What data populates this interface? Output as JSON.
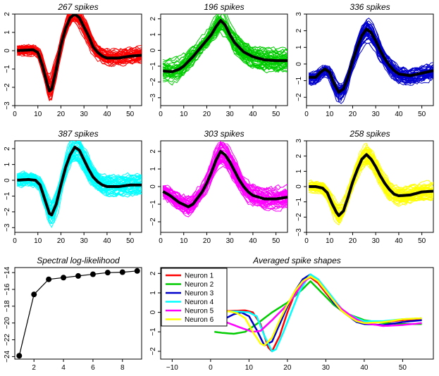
{
  "chart_data": [
    {
      "type": "line",
      "title": "267 spikes",
      "color": "#ff0000",
      "xlim": [
        0,
        55
      ],
      "ylim": [
        -3,
        2
      ],
      "x_ticks": [
        0,
        10,
        20,
        30,
        40,
        50
      ],
      "y_ticks": [
        -3,
        -2,
        -1,
        0,
        1,
        2
      ],
      "mean_shape": [
        [
          0,
          0
        ],
        [
          5,
          0.03
        ],
        [
          8,
          0.05
        ],
        [
          10,
          -0.1
        ],
        [
          12,
          -0.8
        ],
        [
          14,
          -1.8
        ],
        [
          15,
          -2.2
        ],
        [
          16,
          -2.1
        ],
        [
          18,
          -1.0
        ],
        [
          20,
          0.3
        ],
        [
          22,
          1.2
        ],
        [
          24,
          1.8
        ],
        [
          26,
          2.0
        ],
        [
          28,
          1.8
        ],
        [
          30,
          1.3
        ],
        [
          32,
          0.8
        ],
        [
          34,
          0.2
        ],
        [
          36,
          -0.1
        ],
        [
          38,
          -0.3
        ],
        [
          40,
          -0.4
        ],
        [
          45,
          -0.4
        ],
        [
          50,
          -0.3
        ],
        [
          55,
          -0.25
        ]
      ],
      "spread": 0.5,
      "n_traces": 45
    },
    {
      "type": "line",
      "title": "196 spikes",
      "color": "#00cc00",
      "xlim": [
        0,
        55
      ],
      "ylim": [
        -3.5,
        2.3
      ],
      "x_ticks": [
        0,
        10,
        20,
        30,
        40,
        50
      ],
      "y_ticks": [
        -3,
        -2,
        -1,
        0,
        1,
        2
      ],
      "mean_shape": [
        [
          0,
          -1.3
        ],
        [
          5,
          -1.35
        ],
        [
          8,
          -1.2
        ],
        [
          10,
          -1.0
        ],
        [
          14,
          -0.4
        ],
        [
          18,
          0.3
        ],
        [
          22,
          1.0
        ],
        [
          24,
          1.5
        ],
        [
          26,
          1.9
        ],
        [
          28,
          1.6
        ],
        [
          30,
          1.0
        ],
        [
          32,
          0.5
        ],
        [
          34,
          0.2
        ],
        [
          36,
          -0.1
        ],
        [
          40,
          -0.4
        ],
        [
          45,
          -0.6
        ],
        [
          50,
          -0.65
        ],
        [
          55,
          -0.65
        ]
      ],
      "spread": 0.8,
      "n_traces": 45
    },
    {
      "type": "line",
      "title": "336 spikes",
      "color": "#0000cc",
      "xlim": [
        0,
        55
      ],
      "ylim": [
        -2.5,
        3
      ],
      "x_ticks": [
        0,
        10,
        20,
        30,
        40,
        50
      ],
      "y_ticks": [
        -2,
        -1,
        0,
        1,
        2,
        3
      ],
      "mean_shape": [
        [
          0,
          -0.8
        ],
        [
          4,
          -0.8
        ],
        [
          6,
          -0.5
        ],
        [
          8,
          -0.3
        ],
        [
          10,
          -0.5
        ],
        [
          12,
          -1.2
        ],
        [
          14,
          -1.7
        ],
        [
          16,
          -1.5
        ],
        [
          18,
          -0.8
        ],
        [
          20,
          0.2
        ],
        [
          22,
          1.0
        ],
        [
          24,
          1.7
        ],
        [
          26,
          2.1
        ],
        [
          28,
          1.9
        ],
        [
          30,
          1.4
        ],
        [
          32,
          0.8
        ],
        [
          34,
          0.3
        ],
        [
          36,
          -0.1
        ],
        [
          38,
          -0.4
        ],
        [
          40,
          -0.6
        ],
        [
          45,
          -0.7
        ],
        [
          50,
          -0.55
        ],
        [
          55,
          -0.4
        ]
      ],
      "spread": 0.6,
      "n_traces": 45
    },
    {
      "type": "line",
      "title": "387 spikes",
      "color": "#00ffff",
      "xlim": [
        0,
        55
      ],
      "ylim": [
        -3.3,
        2.5
      ],
      "x_ticks": [
        0,
        10,
        20,
        30,
        40,
        50
      ],
      "y_ticks": [
        -3,
        -2,
        -1,
        0,
        1,
        2
      ],
      "mean_shape": [
        [
          0,
          0
        ],
        [
          6,
          0.05
        ],
        [
          9,
          0.0
        ],
        [
          11,
          -0.3
        ],
        [
          13,
          -1.2
        ],
        [
          15,
          -2.1
        ],
        [
          16,
          -2.2
        ],
        [
          18,
          -1.5
        ],
        [
          20,
          -0.3
        ],
        [
          22,
          0.8
        ],
        [
          24,
          1.6
        ],
        [
          26,
          2.1
        ],
        [
          28,
          1.9
        ],
        [
          30,
          1.3
        ],
        [
          32,
          0.7
        ],
        [
          34,
          0.2
        ],
        [
          36,
          -0.1
        ],
        [
          38,
          -0.3
        ],
        [
          40,
          -0.4
        ],
        [
          45,
          -0.4
        ],
        [
          50,
          -0.3
        ],
        [
          55,
          -0.3
        ]
      ],
      "spread": 0.75,
      "n_traces": 45
    },
    {
      "type": "line",
      "title": "303 spikes",
      "color": "#ff00ff",
      "xlim": [
        0,
        55
      ],
      "ylim": [
        -2.6,
        2.6
      ],
      "x_ticks": [
        0,
        10,
        20,
        30,
        40,
        50
      ],
      "y_ticks": [
        -2,
        -1,
        0,
        1,
        2
      ],
      "mean_shape": [
        [
          0,
          -0.2
        ],
        [
          4,
          -0.5
        ],
        [
          8,
          -0.9
        ],
        [
          12,
          -1.15
        ],
        [
          14,
          -1.0
        ],
        [
          18,
          -0.3
        ],
        [
          20,
          0.2
        ],
        [
          22,
          0.8
        ],
        [
          24,
          1.5
        ],
        [
          26,
          2.0
        ],
        [
          28,
          1.8
        ],
        [
          30,
          1.4
        ],
        [
          32,
          0.9
        ],
        [
          34,
          0.4
        ],
        [
          36,
          0.0
        ],
        [
          38,
          -0.3
        ],
        [
          40,
          -0.5
        ],
        [
          45,
          -0.7
        ],
        [
          50,
          -0.7
        ],
        [
          55,
          -0.6
        ]
      ],
      "spread": 0.7,
      "n_traces": 45
    },
    {
      "type": "line",
      "title": "258 spikes",
      "color": "#ffff00",
      "xlim": [
        0,
        55
      ],
      "ylim": [
        -3,
        3
      ],
      "x_ticks": [
        0,
        10,
        20,
        30,
        40,
        50
      ],
      "y_ticks": [
        -3,
        -2,
        -1,
        0,
        1,
        2,
        3
      ],
      "mean_shape": [
        [
          0,
          0
        ],
        [
          4,
          0
        ],
        [
          7,
          -0.1
        ],
        [
          9,
          -0.4
        ],
        [
          11,
          -1.1
        ],
        [
          13,
          -1.7
        ],
        [
          14,
          -1.9
        ],
        [
          16,
          -1.6
        ],
        [
          18,
          -0.7
        ],
        [
          20,
          0.3
        ],
        [
          22,
          1.1
        ],
        [
          24,
          1.8
        ],
        [
          26,
          2.1
        ],
        [
          28,
          1.8
        ],
        [
          30,
          1.3
        ],
        [
          32,
          0.7
        ],
        [
          34,
          0.2
        ],
        [
          36,
          -0.2
        ],
        [
          38,
          -0.5
        ],
        [
          40,
          -0.6
        ],
        [
          45,
          -0.55
        ],
        [
          50,
          -0.35
        ],
        [
          55,
          -0.3
        ]
      ],
      "spread": 0.7,
      "n_traces": 45
    },
    {
      "type": "line",
      "title": "Spectral log-likelihood",
      "x": [
        1,
        2,
        3,
        4,
        5,
        6,
        7,
        8,
        9
      ],
      "y": [
        -23.9,
        -16.6,
        -14.8,
        -14.6,
        -14.4,
        -14.2,
        -14.0,
        -13.95,
        -13.8
      ],
      "xlim": [
        0.7,
        9.3
      ],
      "ylim": [
        -24.3,
        -13.4
      ],
      "x_ticks": [
        2,
        4,
        6,
        8
      ],
      "y_ticks": [
        -24,
        -22,
        -20,
        -18,
        -16,
        -14
      ],
      "marker": "filled-circle"
    },
    {
      "type": "line",
      "title": "Averaged spike shapes",
      "xlim": [
        -13,
        58
      ],
      "ylim": [
        -2.4,
        2.3
      ],
      "x_ticks": [
        -10,
        0,
        10,
        20,
        30,
        40,
        50
      ],
      "y_ticks": [
        -2,
        -1,
        0,
        1,
        2
      ],
      "legend_position": "top-left",
      "series": [
        {
          "name": "Neuron 1",
          "color": "#ff0000",
          "points": [
            [
              1,
              0.05
            ],
            [
              6,
              0.08
            ],
            [
              9,
              0.1
            ],
            [
              11,
              0.0
            ],
            [
              13,
              -0.6
            ],
            [
              15,
              -1.8
            ],
            [
              16,
              -2.0
            ],
            [
              18,
              -1.2
            ],
            [
              20,
              0.0
            ],
            [
              22,
              1.0
            ],
            [
              24,
              1.6
            ],
            [
              26,
              1.8
            ],
            [
              28,
              1.5
            ],
            [
              30,
              1.0
            ],
            [
              32,
              0.5
            ],
            [
              34,
              0.1
            ],
            [
              36,
              -0.2
            ],
            [
              38,
              -0.4
            ],
            [
              40,
              -0.5
            ],
            [
              45,
              -0.5
            ],
            [
              50,
              -0.4
            ],
            [
              55,
              -0.35
            ]
          ]
        },
        {
          "name": "Neuron 2",
          "color": "#00cc00",
          "points": [
            [
              1,
              -1.0
            ],
            [
              3,
              -1.05
            ],
            [
              6,
              -1.1
            ],
            [
              9,
              -1.0
            ],
            [
              12,
              -0.6
            ],
            [
              16,
              0.0
            ],
            [
              20,
              0.5
            ],
            [
              24,
              1.2
            ],
            [
              26,
              1.6
            ],
            [
              28,
              1.2
            ],
            [
              30,
              0.8
            ],
            [
              32,
              0.4
            ],
            [
              34,
              0.1
            ],
            [
              36,
              -0.1
            ],
            [
              40,
              -0.4
            ],
            [
              45,
              -0.55
            ],
            [
              50,
              -0.6
            ],
            [
              55,
              -0.6
            ]
          ]
        },
        {
          "name": "Neuron 3",
          "color": "#0000cc",
          "points": [
            [
              1,
              -0.3
            ],
            [
              4,
              -0.3
            ],
            [
              6,
              -0.1
            ],
            [
              8,
              0.0
            ],
            [
              10,
              -0.2
            ],
            [
              12,
              -0.9
            ],
            [
              14,
              -1.7
            ],
            [
              16,
              -1.5
            ],
            [
              18,
              -0.6
            ],
            [
              20,
              0.3
            ],
            [
              22,
              1.1
            ],
            [
              24,
              1.7
            ],
            [
              26,
              1.95
            ],
            [
              28,
              1.6
            ],
            [
              30,
              1.1
            ],
            [
              32,
              0.5
            ],
            [
              34,
              0.1
            ],
            [
              36,
              -0.2
            ],
            [
              38,
              -0.5
            ],
            [
              40,
              -0.6
            ],
            [
              45,
              -0.65
            ],
            [
              50,
              -0.5
            ],
            [
              55,
              -0.4
            ]
          ]
        },
        {
          "name": "Neuron 4",
          "color": "#00ffff",
          "points": [
            [
              1,
              0.05
            ],
            [
              7,
              0.05
            ],
            [
              10,
              0.0
            ],
            [
              12,
              -0.2
            ],
            [
              14,
              -1.2
            ],
            [
              16,
              -2.0
            ],
            [
              17,
              -1.9
            ],
            [
              19,
              -1.0
            ],
            [
              21,
              0.0
            ],
            [
              23,
              1.0
            ],
            [
              25,
              1.7
            ],
            [
              26,
              1.95
            ],
            [
              28,
              1.7
            ],
            [
              30,
              1.2
            ],
            [
              32,
              0.7
            ],
            [
              34,
              0.2
            ],
            [
              36,
              -0.1
            ],
            [
              38,
              -0.3
            ],
            [
              40,
              -0.45
            ],
            [
              45,
              -0.45
            ],
            [
              50,
              -0.35
            ],
            [
              55,
              -0.3
            ]
          ]
        },
        {
          "name": "Neuron 5",
          "color": "#ff00ff",
          "points": [
            [
              1,
              -0.3
            ],
            [
              4,
              -0.5
            ],
            [
              8,
              -0.8
            ],
            [
              11,
              -1.0
            ],
            [
              13,
              -0.95
            ],
            [
              16,
              -0.4
            ],
            [
              18,
              0.0
            ],
            [
              20,
              0.4
            ],
            [
              22,
              0.9
            ],
            [
              24,
              1.5
            ],
            [
              26,
              1.85
            ],
            [
              28,
              1.6
            ],
            [
              30,
              1.1
            ],
            [
              32,
              0.6
            ],
            [
              34,
              0.2
            ],
            [
              36,
              -0.1
            ],
            [
              38,
              -0.35
            ],
            [
              40,
              -0.55
            ],
            [
              45,
              -0.7
            ],
            [
              50,
              -0.65
            ],
            [
              55,
              -0.55
            ]
          ]
        },
        {
          "name": "Neuron 6",
          "color": "#ffff00",
          "points": [
            [
              1,
              0.05
            ],
            [
              5,
              0.05
            ],
            [
              7,
              -0.05
            ],
            [
              9,
              -0.3
            ],
            [
              11,
              -1.0
            ],
            [
              13,
              -1.6
            ],
            [
              14,
              -1.7
            ],
            [
              16,
              -1.3
            ],
            [
              18,
              -0.4
            ],
            [
              20,
              0.4
            ],
            [
              22,
              1.1
            ],
            [
              24,
              1.6
            ],
            [
              26,
              1.85
            ],
            [
              28,
              1.6
            ],
            [
              30,
              1.1
            ],
            [
              32,
              0.6
            ],
            [
              34,
              0.1
            ],
            [
              36,
              -0.2
            ],
            [
              38,
              -0.45
            ],
            [
              40,
              -0.55
            ],
            [
              45,
              -0.5
            ],
            [
              50,
              -0.35
            ],
            [
              55,
              -0.3
            ]
          ]
        }
      ]
    }
  ]
}
